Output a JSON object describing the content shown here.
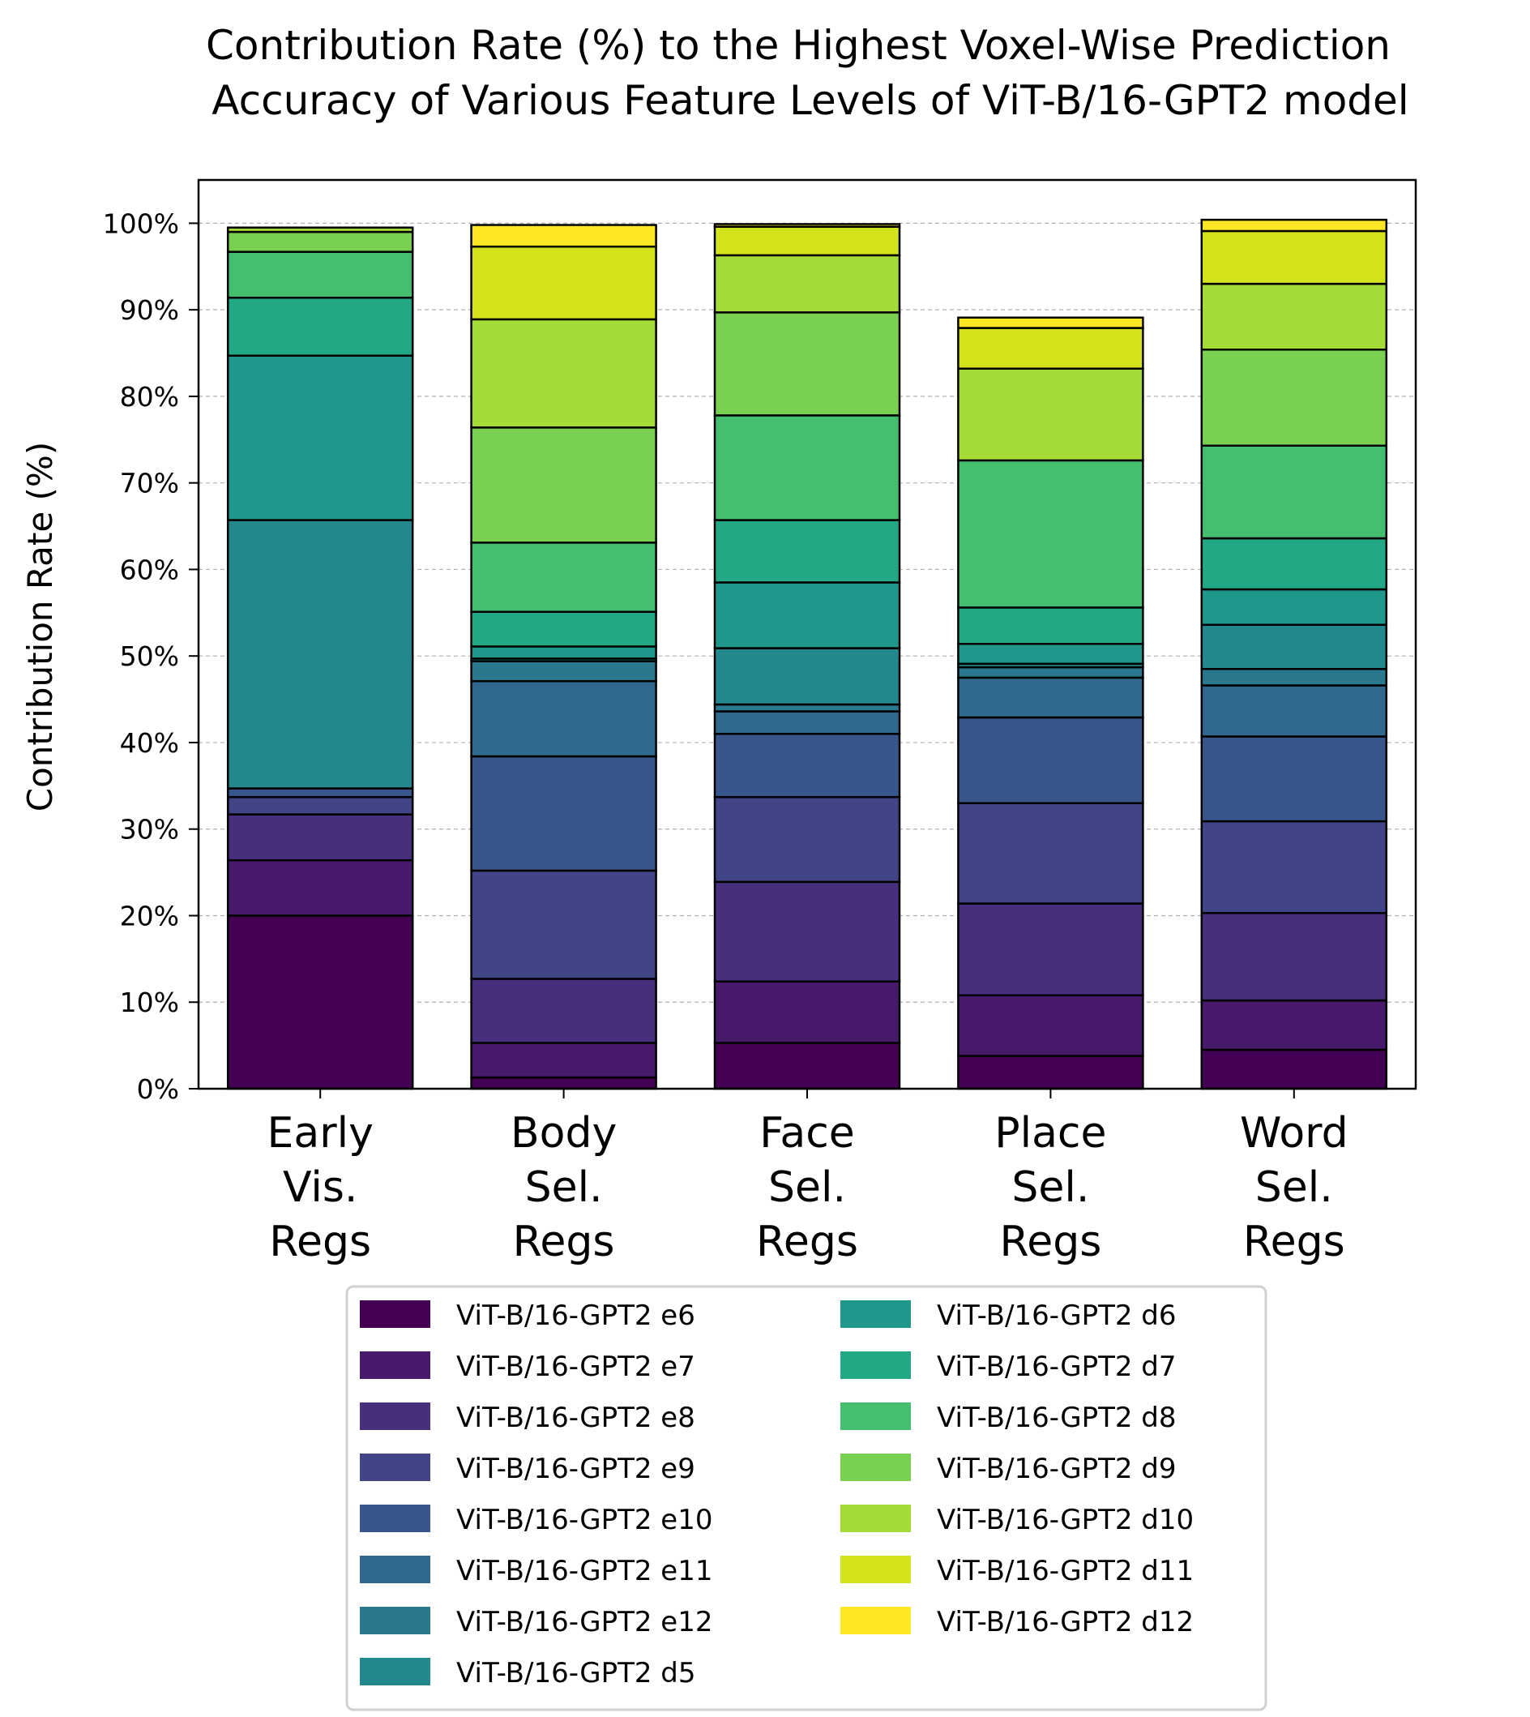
{
  "chart_data": {
    "type": "bar",
    "stacked": true,
    "title": [
      "Contribution Rate (%) to the Highest Voxel-Wise Prediction",
      "Accuracy of Various Feature Levels of ViT-B/16-GPT2 model"
    ],
    "ylabel": "Contribution Rate (%)",
    "xlabel": "",
    "ylim": [
      0,
      105
    ],
    "yticks": [
      "0%",
      "10%",
      "20%",
      "30%",
      "40%",
      "50%",
      "60%",
      "70%",
      "80%",
      "90%",
      "100%"
    ],
    "grid": "horizontal, dashed",
    "legend_position": "below plot, 2 columns",
    "categories": [
      [
        "Early",
        "Vis.",
        "Regs"
      ],
      [
        "Body",
        "Sel.",
        "Regs"
      ],
      [
        "Face",
        "Sel.",
        "Regs"
      ],
      [
        "Place",
        "Sel.",
        "Regs"
      ],
      [
        "Word",
        "Sel.",
        "Regs"
      ]
    ],
    "series": [
      {
        "name": "ViT-B/16-GPT2 e6",
        "color": "#440154",
        "values": [
          20.0,
          1.3,
          5.3,
          3.8,
          4.5
        ]
      },
      {
        "name": "ViT-B/16-GPT2 e7",
        "color": "#481a6c",
        "values": [
          6.4,
          4.0,
          7.1,
          7.0,
          5.7
        ]
      },
      {
        "name": "ViT-B/16-GPT2 e8",
        "color": "#472f7d",
        "values": [
          5.3,
          7.4,
          11.5,
          10.6,
          10.1
        ]
      },
      {
        "name": "ViT-B/16-GPT2 e9",
        "color": "#414487",
        "values": [
          2.0,
          12.5,
          9.8,
          11.6,
          10.6
        ]
      },
      {
        "name": "ViT-B/16-GPT2 e10",
        "color": "#39568c",
        "values": [
          1.0,
          13.2,
          7.3,
          9.9,
          9.8
        ]
      },
      {
        "name": "ViT-B/16-GPT2 e11",
        "color": "#31688e",
        "values": [
          0.0,
          8.7,
          2.6,
          4.6,
          5.9
        ]
      },
      {
        "name": "ViT-B/16-GPT2 e12",
        "color": "#2a788e",
        "values": [
          0.0,
          2.3,
          0.8,
          1.2,
          1.9
        ]
      },
      {
        "name": "ViT-B/16-GPT2 d5",
        "color": "#23888e",
        "values": [
          31.0,
          0.3,
          6.5,
          0.4,
          5.1
        ]
      },
      {
        "name": "ViT-B/16-GPT2 d6",
        "color": "#1f988b",
        "values": [
          19.0,
          1.4,
          7.6,
          2.3,
          4.1
        ]
      },
      {
        "name": "ViT-B/16-GPT2 d7",
        "color": "#22a884",
        "values": [
          6.7,
          4.0,
          7.2,
          4.2,
          5.9
        ]
      },
      {
        "name": "ViT-B/16-GPT2 d8",
        "color": "#44bf70",
        "values": [
          5.3,
          8.0,
          12.1,
          17.0,
          10.7
        ]
      },
      {
        "name": "ViT-B/16-GPT2 d9",
        "color": "#7ad151",
        "values": [
          2.3,
          13.3,
          11.9,
          0.0,
          11.1
        ]
      },
      {
        "name": "ViT-B/16-GPT2 d10",
        "color": "#a5db36",
        "values": [
          0.5,
          12.5,
          6.6,
          10.6,
          7.6
        ]
      },
      {
        "name": "ViT-B/16-GPT2 d11",
        "color": "#d2e21b",
        "values": [
          0.0,
          8.4,
          3.3,
          4.7,
          6.1
        ]
      },
      {
        "name": "ViT-B/16-GPT2 d12",
        "color": "#fde725",
        "values": [
          0.0,
          2.5,
          0.3,
          1.2,
          1.3
        ]
      }
    ]
  }
}
